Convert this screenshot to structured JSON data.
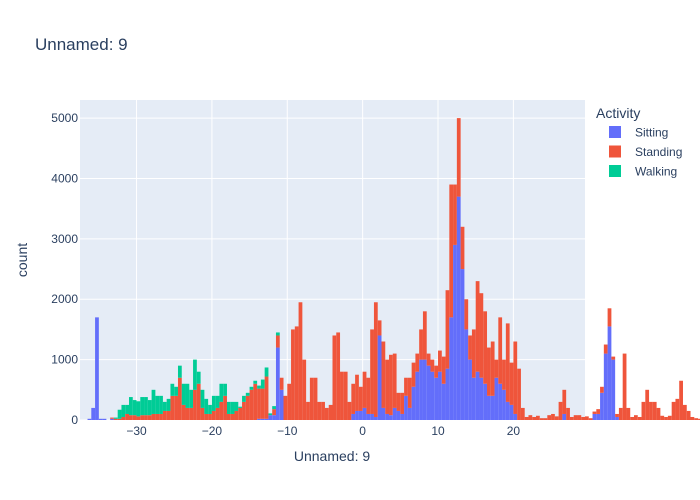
{
  "chart_data": {
    "type": "bar",
    "barmode": "stack",
    "title": "Unnamed: 9",
    "xlabel": "Unnamed: 9",
    "ylabel": "count",
    "xlim": [
      -37.5,
      29.5
    ],
    "ylim": [
      0,
      5300
    ],
    "xticks": [
      -30,
      -20,
      -10,
      0,
      10,
      20
    ],
    "yticks": [
      0,
      1000,
      2000,
      3000,
      4000,
      5000
    ],
    "bin_width": 0.5,
    "grid": true,
    "legend": {
      "title": "Activity",
      "position": "top-right"
    },
    "bin_start": -36.5,
    "series": [
      {
        "name": "Sitting",
        "color": "#636efa",
        "values": [
          20,
          200,
          1700,
          20,
          20,
          0,
          20,
          0,
          0,
          0,
          0,
          0,
          0,
          0,
          0,
          0,
          0,
          0,
          0,
          0,
          0,
          0,
          0,
          0,
          0,
          0,
          0,
          0,
          0,
          0,
          0,
          0,
          0,
          0,
          0,
          0,
          0,
          0,
          0,
          0,
          0,
          0,
          0,
          0,
          0,
          20,
          20,
          20,
          80,
          80,
          1200,
          500,
          0,
          0,
          0,
          0,
          0,
          0,
          0,
          0,
          0,
          0,
          0,
          0,
          0,
          0,
          0,
          0,
          0,
          0,
          100,
          150,
          150,
          200,
          100,
          100,
          50,
          1400,
          200,
          100,
          80,
          200,
          150,
          100,
          400,
          200,
          550,
          800,
          1000,
          1000,
          900,
          800,
          700,
          800,
          600,
          850,
          1700,
          2900,
          3700,
          2500,
          1500,
          1000,
          700,
          800,
          700,
          600,
          400,
          400,
          700,
          600,
          500,
          300,
          250,
          100,
          0,
          0,
          0,
          0,
          0,
          0,
          0,
          0,
          0,
          0,
          0,
          0,
          100,
          0,
          0,
          0,
          0,
          0,
          0,
          0,
          100,
          100,
          450,
          1100,
          1550,
          1000,
          50,
          0,
          0,
          0,
          0,
          0,
          0,
          0,
          0,
          0,
          0,
          0,
          0,
          0,
          0,
          0,
          0,
          0,
          0,
          0,
          0,
          0,
          0,
          0,
          0,
          0,
          0,
          0,
          0,
          0,
          0,
          0,
          0,
          0,
          0,
          0,
          0
        ]
      },
      {
        "name": "Standing",
        "color": "#ef553b",
        "values": [
          0,
          0,
          0,
          0,
          0,
          0,
          20,
          20,
          20,
          50,
          100,
          80,
          80,
          60,
          80,
          80,
          80,
          100,
          100,
          100,
          150,
          150,
          400,
          400,
          700,
          250,
          200,
          200,
          500,
          600,
          200,
          100,
          100,
          150,
          200,
          300,
          400,
          100,
          100,
          150,
          200,
          300,
          400,
          500,
          600,
          500,
          500,
          700,
          0,
          100,
          200,
          200,
          400,
          600,
          1500,
          1550,
          1950,
          1000,
          300,
          700,
          700,
          300,
          300,
          200,
          250,
          1400,
          1450,
          800,
          800,
          300,
          500,
          600,
          400,
          600,
          600,
          1400,
          1900,
          250,
          1100,
          900,
          1000,
          900,
          300,
          350,
          300,
          500,
          400,
          300,
          500,
          800,
          200,
          200,
          200,
          350,
          450,
          1300,
          2200,
          1000,
          1300,
          700,
          500,
          400,
          800,
          1500,
          1400,
          1200,
          800,
          900,
          300,
          1100,
          500,
          1300,
          700,
          1200,
          850,
          200,
          50,
          80,
          50,
          70,
          30,
          30,
          80,
          100,
          60,
          300,
          400,
          200,
          50,
          80,
          80,
          50,
          60,
          30,
          40,
          80,
          100,
          150,
          300,
          50,
          50,
          200,
          1100,
          200,
          50,
          80,
          50,
          300,
          500,
          300,
          300,
          200,
          70,
          50,
          70,
          300,
          350,
          650,
          250,
          150,
          50,
          30,
          20,
          0,
          0,
          0,
          0,
          0,
          0,
          0,
          0
        ]
      },
      {
        "name": "Walking",
        "color": "#00cc96",
        "values": [
          0,
          0,
          0,
          0,
          0,
          0,
          0,
          20,
          150,
          200,
          150,
          300,
          250,
          250,
          300,
          300,
          250,
          400,
          300,
          300,
          150,
          200,
          200,
          150,
          200,
          350,
          400,
          300,
          500,
          200,
          300,
          250,
          150,
          250,
          200,
          300,
          200,
          200,
          200,
          150,
          20,
          100,
          50,
          50,
          50,
          50,
          150,
          150,
          30,
          50,
          50,
          0,
          0,
          0,
          0,
          0,
          0,
          0,
          0,
          0,
          0,
          0,
          0,
          0,
          0,
          0,
          0,
          0,
          0,
          0,
          0,
          0,
          0,
          0,
          0,
          0,
          0,
          0,
          0,
          0,
          0,
          0,
          0,
          0,
          0,
          0,
          0,
          0,
          0,
          0,
          0,
          0,
          0,
          0,
          0,
          0,
          0,
          0,
          0,
          0,
          0,
          0,
          0,
          0,
          0,
          0,
          0,
          0,
          0,
          0,
          0,
          0,
          0,
          0,
          0,
          0,
          0,
          0,
          0,
          0,
          0,
          0,
          0,
          0,
          0,
          0,
          0,
          0,
          0,
          0,
          0,
          0,
          0,
          0,
          0,
          0,
          0,
          0,
          0,
          0,
          0,
          0,
          0,
          0,
          0,
          0,
          0,
          0,
          0,
          0,
          0,
          0,
          0,
          0,
          0,
          0,
          0,
          0,
          0,
          0,
          0,
          0,
          0,
          0,
          0,
          0,
          0,
          0,
          0,
          0,
          0,
          0,
          0,
          0,
          0,
          0,
          0,
          0,
          0
        ]
      }
    ]
  }
}
